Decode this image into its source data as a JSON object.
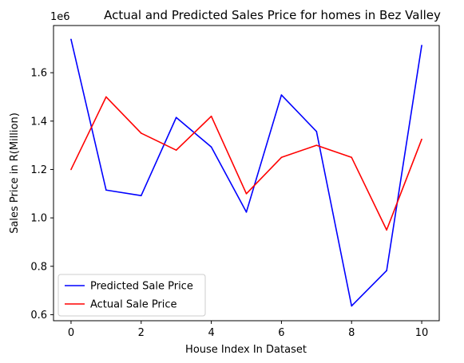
{
  "chart_data": {
    "type": "line",
    "title": "Actual and Predicted Sales Price for homes in Bez Valley",
    "xlabel": "House Index In Dataset",
    "ylabel": "Sales Price in R(Million)",
    "offset_text": "1e6",
    "x": [
      0,
      1,
      2,
      3,
      4,
      5,
      6,
      7,
      8,
      9,
      10
    ],
    "xlim": [
      -0.5,
      10.5
    ],
    "ylim": [
      575000,
      1795000
    ],
    "xticks": [
      0,
      2,
      4,
      6,
      8,
      10
    ],
    "yticks": [
      600000,
      800000,
      1000000,
      1200000,
      1400000,
      1600000
    ],
    "xtick_labels": [
      "0",
      "2",
      "4",
      "6",
      "8",
      "10"
    ],
    "ytick_labels": [
      "0.6",
      "0.8",
      "1.0",
      "1.2",
      "1.4",
      "1.6"
    ],
    "grid": false,
    "legend_position": "lower-left",
    "series": [
      {
        "name": "Predicted Sale Price",
        "color": "#0000ff",
        "values": [
          1738000,
          1115000,
          1092000,
          1415000,
          1293000,
          1024000,
          1508000,
          1357000,
          636000,
          782000,
          1713000
        ]
      },
      {
        "name": "Actual Sale Price",
        "color": "#ff0000",
        "values": [
          1200000,
          1500000,
          1350000,
          1280000,
          1420000,
          1100000,
          1250000,
          1300000,
          1250000,
          950000,
          1325000
        ]
      }
    ]
  }
}
